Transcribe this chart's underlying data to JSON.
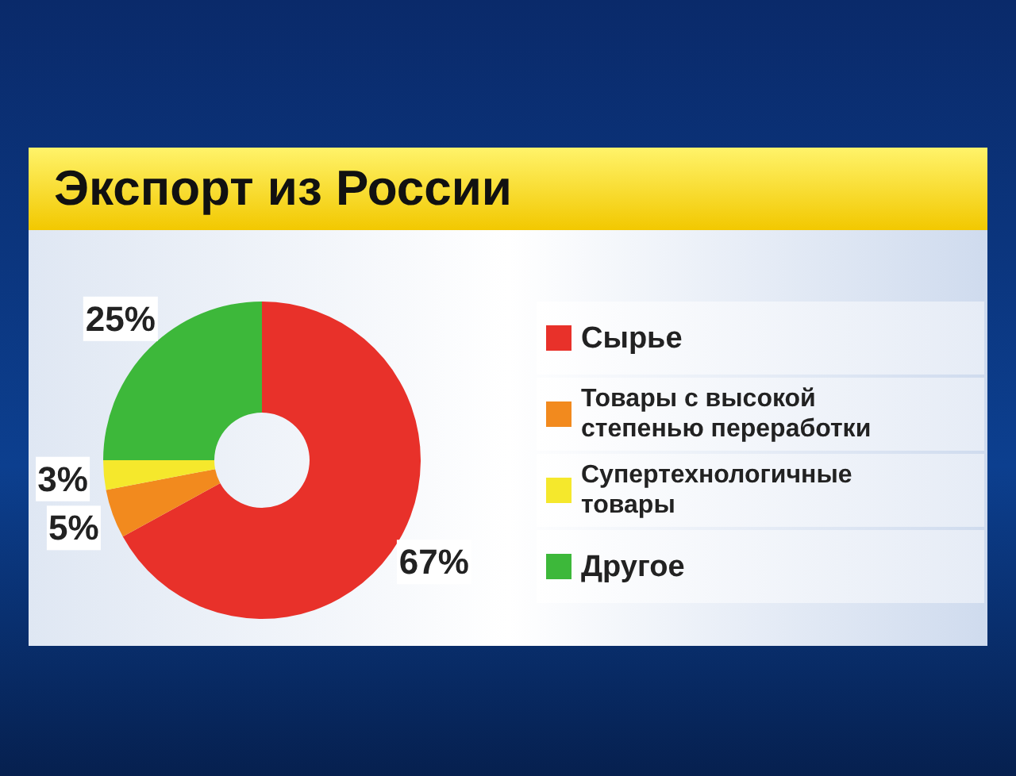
{
  "chart_data": {
    "type": "donut",
    "title": "Экспорт из России",
    "categories": [
      "Сырье",
      "Товары с высокой степенью переработки",
      "Супертехнологичные товары",
      "Другое"
    ],
    "values": [
      67,
      5,
      3,
      25
    ],
    "colors": [
      "#e8312a",
      "#f28a1e",
      "#f5e82c",
      "#3db83a"
    ],
    "value_labels": [
      "67%",
      "5%",
      "3%",
      "25%"
    ],
    "legend": "right"
  }
}
